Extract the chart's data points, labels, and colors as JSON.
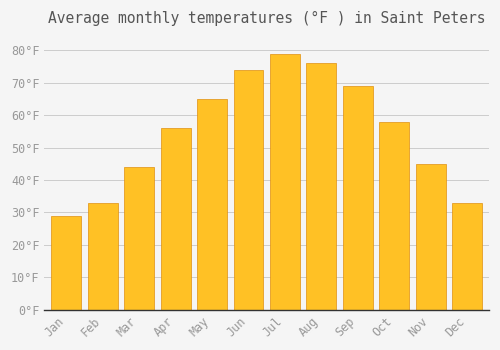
{
  "title": "Average monthly temperatures (°F ) in Saint Peters",
  "months": [
    "Jan",
    "Feb",
    "Mar",
    "Apr",
    "May",
    "Jun",
    "Jul",
    "Aug",
    "Sep",
    "Oct",
    "Nov",
    "Dec"
  ],
  "temperatures": [
    29,
    33,
    44,
    56,
    65,
    74,
    79,
    76,
    69,
    58,
    45,
    33
  ],
  "bar_color": "#FFC125",
  "bar_edge_color": "#E09010",
  "background_color": "#F5F5F5",
  "plot_bg_color": "#F5F5F5",
  "grid_color": "#CCCCCC",
  "text_color": "#999999",
  "title_color": "#555555",
  "axis_color": "#333333",
  "ylim": [
    0,
    85
  ],
  "yticks": [
    0,
    10,
    20,
    30,
    40,
    50,
    60,
    70,
    80
  ],
  "ytick_labels": [
    "0°F",
    "10°F",
    "20°F",
    "30°F",
    "40°F",
    "50°F",
    "60°F",
    "70°F",
    "80°F"
  ],
  "title_fontsize": 10.5,
  "tick_fontsize": 8.5,
  "figsize": [
    5.0,
    3.5
  ],
  "dpi": 100,
  "bar_width": 0.82
}
